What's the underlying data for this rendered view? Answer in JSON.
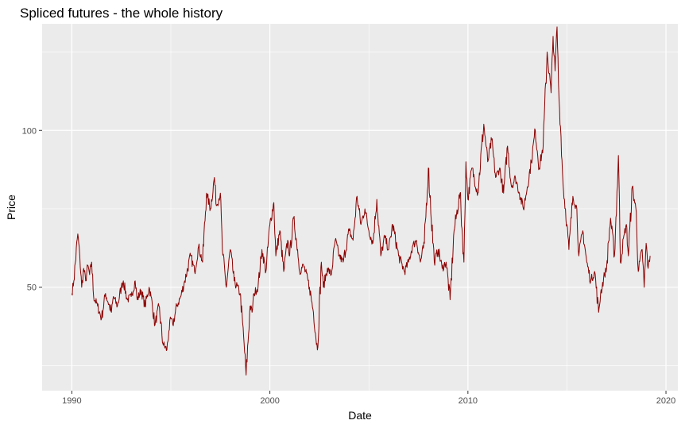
{
  "chart_data": {
    "type": "line",
    "title": "Spliced futures - the whole history",
    "xlabel": "Date",
    "ylabel": "Price",
    "xlim": [
      1988.5,
      2020.6
    ],
    "ylim": [
      17,
      134
    ],
    "x_ticks": [
      1990,
      2000,
      2010,
      2020
    ],
    "x_tick_labels": [
      "1990",
      "2000",
      "2010",
      "2020"
    ],
    "y_ticks": [
      50,
      100
    ],
    "y_tick_labels": [
      "50",
      "100"
    ],
    "grid": true,
    "legend": "none",
    "line_color": "#8b0000",
    "panel_color": "#ebebeb",
    "grid_color": "#ffffff",
    "series": [
      {
        "x": [
          1990.0,
          1990.1,
          1990.3,
          1990.4,
          1990.5,
          1990.6,
          1990.7,
          1990.8,
          1990.9,
          1991.0,
          1991.1,
          1991.3,
          1991.5,
          1991.7,
          1992.0,
          1992.1,
          1992.3,
          1992.5,
          1992.6,
          1992.8,
          1993.0,
          1993.2,
          1993.3,
          1993.5,
          1993.7,
          1993.9,
          1994.0,
          1994.2,
          1994.4,
          1994.6,
          1994.8,
          1994.9,
          1995.0,
          1995.1,
          1995.3,
          1995.5,
          1995.7,
          1996.0,
          1996.2,
          1996.4,
          1996.6,
          1996.8,
          1997.0,
          1997.2,
          1997.3,
          1997.5,
          1997.6,
          1997.8,
          1998.0,
          1998.2,
          1998.5,
          1998.7,
          1998.8,
          1999.0,
          1999.1,
          1999.2,
          1999.4,
          1999.6,
          1999.8,
          2000.0,
          2000.2,
          2000.3,
          2000.5,
          2000.7,
          2000.9,
          2001.0,
          2001.2,
          2001.4,
          2001.5,
          2001.7,
          2002.0,
          2002.2,
          2002.4,
          2002.6,
          2002.7,
          2002.9,
          2003.1,
          2003.3,
          2003.5,
          2003.7,
          2004.0,
          2004.2,
          2004.4,
          2004.6,
          2004.8,
          2005.0,
          2005.2,
          2005.4,
          2005.6,
          2005.8,
          2006.0,
          2006.2,
          2006.5,
          2006.8,
          2007.0,
          2007.2,
          2007.4,
          2007.6,
          2007.8,
          2008.0,
          2008.3,
          2008.5,
          2008.7,
          2008.9,
          2009.1,
          2009.3,
          2009.6,
          2009.8,
          2009.9,
          2010.0,
          2010.2,
          2010.5,
          2010.8,
          2011.0,
          2011.2,
          2011.4,
          2011.6,
          2011.8,
          2012.0,
          2012.2,
          2012.4,
          2012.6,
          2012.8,
          2013.0,
          2013.2,
          2013.4,
          2013.6,
          2013.8,
          2014.0,
          2014.2,
          2014.3,
          2014.4,
          2014.5,
          2014.6,
          2014.7,
          2014.8,
          2015.0,
          2015.1,
          2015.3,
          2015.5,
          2015.6,
          2015.8,
          2016.0,
          2016.2,
          2016.4,
          2016.6,
          2016.7,
          2016.9,
          2017.0,
          2017.2,
          2017.4,
          2017.6,
          2017.7,
          2017.9,
          2018.0,
          2018.1,
          2018.3,
          2018.5,
          2018.6,
          2018.8,
          2018.9,
          2019.0,
          2019.1,
          2019.2
        ],
        "y": [
          48,
          52,
          67,
          60,
          50,
          56,
          52,
          57,
          54,
          58,
          47,
          44,
          40,
          48,
          42,
          47,
          44,
          50,
          52,
          46,
          47,
          52,
          46,
          49,
          44,
          50,
          47,
          38,
          44,
          32,
          30,
          36,
          40,
          38,
          44,
          47,
          52,
          60,
          55,
          63,
          58,
          80,
          75,
          85,
          76,
          80,
          62,
          50,
          62,
          52,
          48,
          32,
          22,
          44,
          42,
          48,
          50,
          62,
          55,
          70,
          77,
          60,
          68,
          55,
          65,
          60,
          72,
          62,
          55,
          57,
          50,
          42,
          30,
          58,
          50,
          56,
          54,
          65,
          60,
          58,
          68,
          65,
          79,
          70,
          75,
          68,
          64,
          78,
          60,
          66,
          62,
          70,
          60,
          55,
          58,
          63,
          65,
          58,
          64,
          88,
          58,
          62,
          56,
          58,
          46,
          68,
          80,
          58,
          90,
          78,
          88,
          80,
          102,
          90,
          97,
          85,
          88,
          80,
          95,
          82,
          85,
          80,
          75,
          82,
          90,
          100,
          88,
          95,
          125,
          112,
          130,
          119,
          133,
          110,
          98,
          83,
          70,
          62,
          79,
          75,
          60,
          68,
          58,
          52,
          55,
          42,
          48,
          54,
          56,
          72,
          60,
          92,
          58,
          67,
          70,
          60,
          82,
          74,
          55,
          62,
          50,
          64,
          56,
          60
        ]
      }
    ]
  }
}
